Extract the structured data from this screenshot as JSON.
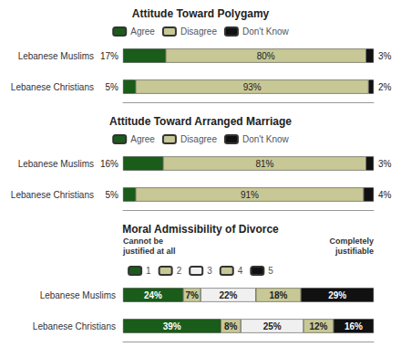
{
  "chart_data": [
    {
      "type": "bar",
      "orientation": "horizontal",
      "stacked": true,
      "title": "Attitude Toward Polygamy",
      "categories": [
        "Lebanese Muslims",
        "Lebanese Christians"
      ],
      "series": [
        {
          "name": "Agree",
          "color": "#1a5c1a",
          "values": [
            17,
            5
          ],
          "value_labels": [
            "17%",
            "5%"
          ]
        },
        {
          "name": "Disagree",
          "color": "#c8c896",
          "values": [
            80,
            93
          ],
          "value_labels": [
            "80%",
            "93%"
          ]
        },
        {
          "name": "Don't Know",
          "color": "#111111",
          "values": [
            3,
            2
          ],
          "value_labels": [
            "3%",
            "2%"
          ]
        }
      ],
      "xlim": [
        0,
        100
      ],
      "data_labels": true,
      "tick_labels": "y",
      "grid": false,
      "legend": "top"
    },
    {
      "type": "bar",
      "orientation": "horizontal",
      "stacked": true,
      "title": "Attitude Toward Arranged Marriage",
      "categories": [
        "Lebanese Muslims",
        "Lebanese Christians"
      ],
      "series": [
        {
          "name": "Agree",
          "color": "#1a5c1a",
          "values": [
            16,
            5
          ],
          "value_labels": [
            "16%",
            "5%"
          ]
        },
        {
          "name": "Disagree",
          "color": "#c8c896",
          "values": [
            81,
            91
          ],
          "value_labels": [
            "81%",
            "91%"
          ]
        },
        {
          "name": "Don't Know",
          "color": "#111111",
          "values": [
            3,
            4
          ],
          "value_labels": [
            "3%",
            "4%"
          ]
        }
      ],
      "xlim": [
        0,
        100
      ],
      "data_labels": true,
      "tick_labels": "y",
      "grid": false,
      "legend": "top"
    },
    {
      "type": "bar",
      "orientation": "horizontal",
      "stacked": true,
      "title": "Moral Admissibility of Divorce",
      "categories": [
        "Lebanese Muslims",
        "Lebanese Christians"
      ],
      "series": [
        {
          "name": "1",
          "color": "#1a5c1a",
          "values": [
            24,
            39
          ],
          "value_labels": [
            "24%",
            "39%"
          ]
        },
        {
          "name": "2",
          "color": "#c8c896",
          "values": [
            7,
            8
          ],
          "value_labels": [
            "7%",
            "8%"
          ]
        },
        {
          "name": "3",
          "color": "#f0f0f0",
          "values": [
            22,
            25
          ],
          "value_labels": [
            "22%",
            "25%"
          ]
        },
        {
          "name": "4",
          "color": "#c8c896",
          "values": [
            18,
            12
          ],
          "value_labels": [
            "18%",
            "12%"
          ]
        },
        {
          "name": "5",
          "color": "#111111",
          "values": [
            29,
            16
          ],
          "value_labels": [
            "29%",
            "16%"
          ]
        }
      ],
      "annotations": [
        "Cannot be\njustified at all",
        "Completely\njustifiable"
      ],
      "xlim": [
        0,
        100
      ],
      "data_labels": true,
      "tick_labels": "y",
      "grid": false,
      "legend": "top"
    }
  ]
}
